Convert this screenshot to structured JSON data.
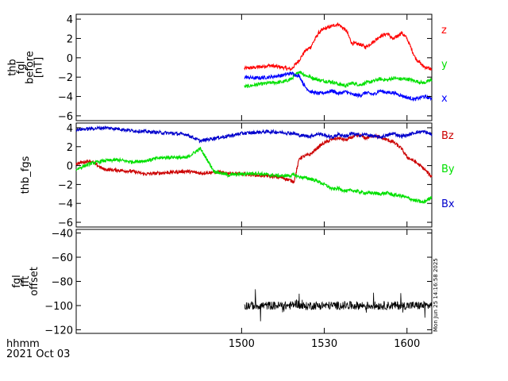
{
  "chart_data": {
    "type": "line",
    "x_tick_labels": [
      "1500",
      "1530",
      "1600"
    ],
    "x_tick_values_min": [
      900,
      930,
      960
    ],
    "x_range_min": [
      840,
      969
    ],
    "footer": {
      "line1": "hhmm",
      "line2": "2021 Oct 03"
    },
    "timestamp": "Mon Jun 25 14:16:58 2025",
    "panels": [
      {
        "id": "panel1",
        "ylabel": [
          "thb",
          "fgl",
          "before",
          "[nT]"
        ],
        "ylim": [
          -6.5,
          4.5
        ],
        "yticks": [
          4,
          2,
          0,
          -2,
          -4,
          -6
        ],
        "tick_labels": [
          "4",
          "2",
          "0",
          "−2",
          "−4",
          "−6"
        ],
        "series": [
          {
            "name": "z",
            "color": "#ff0000",
            "x": [
              901,
              905,
              910,
              915,
              918,
              921,
              923,
              925,
              928,
              930,
              933,
              935,
              938,
              940,
              943,
              945,
              948,
              950,
              953,
              955,
              958,
              960,
              963,
              966,
              969
            ],
            "y": [
              -1.1,
              -1.0,
              -0.8,
              -1.0,
              -1.2,
              -0.2,
              0.7,
              1.1,
              2.6,
              3.0,
              3.3,
              3.5,
              2.8,
              1.5,
              1.4,
              1.1,
              1.7,
              2.2,
              2.5,
              1.9,
              2.6,
              2.0,
              0.0,
              -0.9,
              -1.2
            ]
          },
          {
            "name": "y",
            "color": "#00e000",
            "x": [
              901,
              905,
              910,
              915,
              918,
              921,
              923,
              925,
              928,
              930,
              933,
              935,
              938,
              940,
              943,
              945,
              948,
              950,
              953,
              955,
              958,
              960,
              963,
              966,
              969
            ],
            "y": [
              -3.0,
              -2.8,
              -2.6,
              -2.5,
              -2.2,
              -1.4,
              -1.8,
              -2.0,
              -2.3,
              -2.4,
              -2.5,
              -2.7,
              -2.9,
              -2.6,
              -2.8,
              -2.6,
              -2.4,
              -2.2,
              -2.3,
              -2.1,
              -2.2,
              -2.2,
              -2.4,
              -2.6,
              -2.3
            ]
          },
          {
            "name": "x",
            "color": "#0000ff",
            "x": [
              901,
              905,
              910,
              915,
              918,
              921,
              923,
              925,
              928,
              930,
              933,
              935,
              938,
              940,
              943,
              945,
              948,
              950,
              953,
              955,
              958,
              960,
              963,
              966,
              969
            ],
            "y": [
              -2.0,
              -2.1,
              -2.0,
              -1.8,
              -1.6,
              -1.9,
              -3.0,
              -3.5,
              -3.7,
              -3.6,
              -3.4,
              -3.7,
              -3.5,
              -3.8,
              -3.9,
              -3.6,
              -3.8,
              -3.4,
              -3.6,
              -3.6,
              -3.9,
              -4.1,
              -4.3,
              -4.0,
              -4.2
            ]
          }
        ]
      },
      {
        "id": "panel2",
        "ylabel": [
          "thb_fgs"
        ],
        "ylim": [
          -6.5,
          4.5
        ],
        "yticks": [
          4,
          2,
          0,
          -2,
          -4,
          -6
        ],
        "tick_labels": [
          "4",
          "2",
          "0",
          "−2",
          "−4",
          "−6"
        ],
        "series": [
          {
            "name": "Bz",
            "color": "#cc0000",
            "x": [
              840,
              845,
              850,
              855,
              860,
              865,
              870,
              875,
              880,
              885,
              890,
              895,
              900,
              905,
              910,
              915,
              919,
              921,
              925,
              928,
              930,
              933,
              935,
              938,
              940,
              943,
              945,
              948,
              950,
              953,
              955,
              958,
              960,
              963,
              966,
              969
            ],
            "y": [
              0.2,
              0.5,
              -0.4,
              -0.5,
              -0.6,
              -0.9,
              -0.8,
              -0.7,
              -0.6,
              -0.8,
              -0.7,
              -0.8,
              -0.9,
              -1.0,
              -1.1,
              -1.3,
              -1.7,
              0.8,
              1.2,
              2.0,
              2.4,
              2.8,
              2.9,
              2.7,
              3.0,
              3.2,
              2.9,
              3.2,
              3.0,
              2.7,
              2.5,
              1.8,
              0.9,
              0.4,
              -0.3,
              -1.2
            ]
          },
          {
            "name": "By",
            "color": "#00e000",
            "x": [
              840,
              845,
              850,
              855,
              860,
              865,
              870,
              875,
              880,
              885,
              888,
              890,
              895,
              900,
              905,
              910,
              915,
              919,
              921,
              925,
              928,
              930,
              933,
              935,
              938,
              940,
              943,
              945,
              948,
              950,
              953,
              955,
              958,
              960,
              963,
              966,
              969
            ],
            "y": [
              -0.4,
              0.2,
              0.5,
              0.6,
              0.4,
              0.5,
              0.8,
              0.9,
              0.8,
              1.8,
              0.4,
              -0.6,
              -1.0,
              -0.9,
              -0.8,
              -1.0,
              -1.1,
              -1.0,
              -1.2,
              -1.4,
              -1.7,
              -2.0,
              -2.5,
              -2.4,
              -2.7,
              -2.6,
              -2.8,
              -2.9,
              -2.9,
              -3.0,
              -2.9,
              -3.1,
              -3.2,
              -3.4,
              -3.7,
              -3.9,
              -3.3
            ]
          },
          {
            "name": "Bx",
            "color": "#0000cc",
            "x": [
              840,
              845,
              850,
              855,
              860,
              865,
              870,
              875,
              880,
              885,
              890,
              895,
              900,
              905,
              910,
              915,
              919,
              921,
              925,
              928,
              930,
              933,
              935,
              938,
              940,
              943,
              945,
              948,
              950,
              953,
              955,
              958,
              960,
              963,
              966,
              969
            ],
            "y": [
              3.8,
              3.9,
              4.0,
              3.9,
              3.7,
              3.6,
              3.5,
              3.4,
              3.3,
              2.6,
              2.9,
              3.1,
              3.4,
              3.5,
              3.6,
              3.5,
              3.4,
              3.2,
              3.1,
              3.4,
              3.2,
              3.0,
              3.3,
              3.1,
              3.4,
              3.2,
              3.3,
              3.1,
              3.0,
              3.2,
              3.4,
              3.1,
              3.2,
              3.5,
              3.6,
              3.3
            ]
          }
        ]
      },
      {
        "id": "panel3",
        "ylabel": [
          "fgl",
          "fft",
          "offset"
        ],
        "ylim": [
          -123,
          -37
        ],
        "yticks": [
          -40,
          -60,
          -80,
          -100,
          -120
        ],
        "tick_labels": [
          "−40",
          "−60",
          "−80",
          "−100",
          "−120"
        ],
        "series": [
          {
            "name": "offset",
            "color": "#000000",
            "x": [
              901,
              905,
              910,
              915,
              918,
              920,
              922,
              925,
              930,
              935,
              940,
              945,
              950,
              955,
              960,
              965,
              969
            ],
            "y": [
              -100,
              -100,
              -100,
              -100,
              -100,
              -98,
              -101,
              -100,
              -100,
              -100,
              -100,
              -100,
              -100,
              -100,
              -100,
              -100,
              -100
            ]
          }
        ]
      }
    ]
  }
}
